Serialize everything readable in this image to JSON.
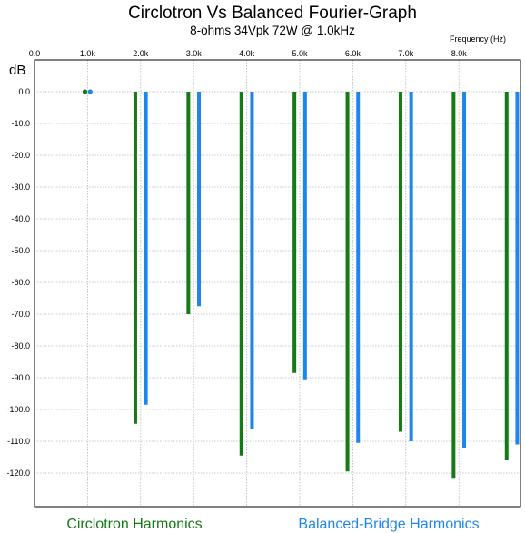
{
  "chart_data": {
    "type": "bar",
    "title": "Circlotron Vs Balanced Fourier-Graph",
    "subtitle": "8-ohms 34Vpk 72W @ 1.0kHz",
    "xlabel": "Frequency   (Hz)",
    "ylabel": "dB",
    "x_ticks": [
      "0.0",
      "1.0k",
      "2.0k",
      "3.0k",
      "4.0k",
      "5.0k",
      "6.0k",
      "7.0k",
      "8.0k"
    ],
    "y_ticks": [
      "0.0",
      "-10.0",
      "-20.0",
      "-30.0",
      "-40.0",
      "-50.0",
      "-60.0",
      "-70.0",
      "-80.0",
      "-90.0",
      "-100.0",
      "-110.0",
      "-120.0"
    ],
    "xlim": [
      0,
      9
    ],
    "ylim": [
      -130,
      5
    ],
    "grid": true,
    "legend_position": "bottom",
    "colors": {
      "green": "#157a15",
      "blue": "#1e86ea"
    },
    "series": [
      {
        "name": "Circlotron Harmonics",
        "color": "#157a15",
        "x": [
          0.95,
          1.9,
          2.9,
          3.9,
          4.9,
          5.9,
          6.9,
          7.9,
          8.9
        ],
        "values": [
          0,
          -104.5,
          -70,
          -114.5,
          -88.5,
          -119.5,
          -107,
          -121.5,
          -116
        ]
      },
      {
        "name": "Balanced-Bridge Harmonics",
        "color": "#1e86ea",
        "x": [
          1.05,
          2.1,
          3.1,
          4.1,
          5.1,
          6.1,
          7.1,
          8.1,
          9.1
        ],
        "values": [
          0,
          -98.5,
          -67.5,
          -106,
          -90.5,
          -110.5,
          -110,
          -112,
          -111
        ]
      }
    ]
  }
}
